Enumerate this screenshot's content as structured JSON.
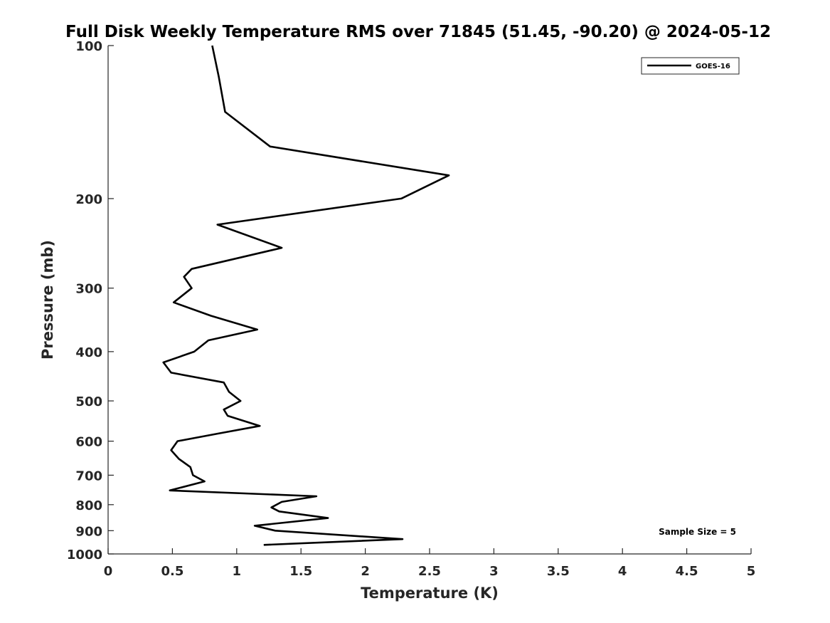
{
  "chart_data": {
    "type": "line",
    "title": "Full Disk Weekly Temperature RMS over 71845 (51.45, -90.20) @ 2024-05-12",
    "xlabel": "Temperature (K)",
    "ylabel": "Pressure (mb)",
    "xlim": [
      0,
      5
    ],
    "ylim": [
      100,
      1000
    ],
    "y_scale": "log",
    "y_reversed": true,
    "x_ticks": [
      "0",
      "0.5",
      "1",
      "1.5",
      "2",
      "2.5",
      "3",
      "3.5",
      "4",
      "4.5",
      "5"
    ],
    "y_ticks": [
      "100",
      "200",
      "300",
      "400",
      "500",
      "600",
      "700",
      "800",
      "900",
      "1000"
    ],
    "grid": false,
    "legend": {
      "position": "top-right",
      "entries": [
        "GOES-16"
      ]
    },
    "annotation": "Sample Size = 5",
    "series": [
      {
        "name": "GOES-16",
        "color": "#000000",
        "points": [
          [
            0.81,
            100
          ],
          [
            0.86,
            115
          ],
          [
            0.91,
            135
          ],
          [
            1.26,
            158
          ],
          [
            2.65,
            180
          ],
          [
            2.28,
            200
          ],
          [
            0.85,
            225
          ],
          [
            1.35,
            250
          ],
          [
            0.65,
            275
          ],
          [
            0.59,
            285
          ],
          [
            0.65,
            300
          ],
          [
            0.51,
            320
          ],
          [
            0.8,
            340
          ],
          [
            1.16,
            362
          ],
          [
            0.78,
            380
          ],
          [
            0.67,
            400
          ],
          [
            0.43,
            420
          ],
          [
            0.49,
            440
          ],
          [
            0.9,
            460
          ],
          [
            0.94,
            480
          ],
          [
            1.03,
            500
          ],
          [
            0.9,
            520
          ],
          [
            0.93,
            535
          ],
          [
            1.18,
            560
          ],
          [
            0.85,
            580
          ],
          [
            0.54,
            600
          ],
          [
            0.49,
            625
          ],
          [
            0.55,
            650
          ],
          [
            0.64,
            675
          ],
          [
            0.66,
            700
          ],
          [
            0.75,
            720
          ],
          [
            0.48,
            750
          ],
          [
            1.62,
            770
          ],
          [
            1.35,
            790
          ],
          [
            1.27,
            810
          ],
          [
            1.33,
            825
          ],
          [
            1.71,
            850
          ],
          [
            1.14,
            880
          ],
          [
            1.3,
            900
          ],
          [
            2.29,
            935
          ],
          [
            1.21,
            960
          ]
        ]
      }
    ]
  }
}
